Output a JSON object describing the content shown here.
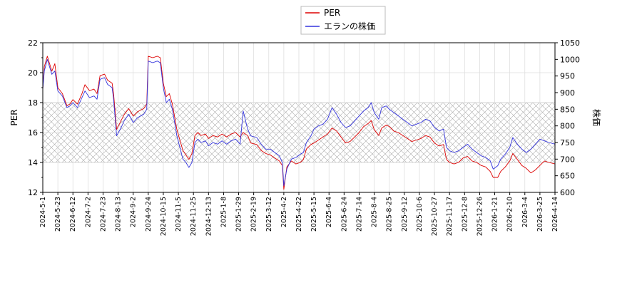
{
  "chart_data": {
    "type": "line",
    "ylabel_left": "PER",
    "ylabel_right": "株価",
    "ylim_left": [
      12,
      22
    ],
    "yticks_left": [
      12,
      14,
      16,
      18,
      20,
      22
    ],
    "ylim_right": [
      600,
      1050
    ],
    "yticks_right": [
      600,
      650,
      700,
      750,
      800,
      850,
      900,
      950,
      1000,
      1050
    ],
    "band": {
      "from": 14,
      "to": 18,
      "pattern": "cross-hatch"
    },
    "grid": true,
    "legend_position": "top-center",
    "x_tick_labels": [
      "2024-5-1",
      "2024-5-23",
      "2024-6-12",
      "2024-7-2",
      "2024-7-23",
      "2024-8-13",
      "2024-9-2",
      "2024-9-24",
      "2024-10-15",
      "2024-11-5",
      "2024-11-25",
      "2024-12-13",
      "2025-1-8",
      "2025-1-29",
      "2025-2-19",
      "2025-3-12",
      "2025-4-2",
      "2025-4-22",
      "2025-5-15",
      "2025-6-4",
      "2025-6-24",
      "2025-7-14",
      "2025-8-4",
      "2025-8-25",
      "2025-9-12",
      "2025-10-6",
      "2025-10-27",
      "2025-11-17",
      "2025-12-8",
      "2025-12-26",
      "2026-1-21",
      "2026-2-10",
      "2026-3-4",
      "2026-3-25",
      "2026-4-14"
    ],
    "series": [
      {
        "name": "PER",
        "axis": "left",
        "color": "#dd0000",
        "points": [
          [
            0,
            18.9
          ],
          [
            0.1,
            20.4
          ],
          [
            0.3,
            21.1
          ],
          [
            0.6,
            20.1
          ],
          [
            0.8,
            20.6
          ],
          [
            1.0,
            19.0
          ],
          [
            1.3,
            18.6
          ],
          [
            1.6,
            17.8
          ],
          [
            1.8,
            17.9
          ],
          [
            2.0,
            18.2
          ],
          [
            2.3,
            17.9
          ],
          [
            2.6,
            18.6
          ],
          [
            2.8,
            19.2
          ],
          [
            3.1,
            18.8
          ],
          [
            3.4,
            18.9
          ],
          [
            3.6,
            18.6
          ],
          [
            3.8,
            19.8
          ],
          [
            4.1,
            19.9
          ],
          [
            4.3,
            19.5
          ],
          [
            4.6,
            19.3
          ],
          [
            4.7,
            18.6
          ],
          [
            4.9,
            16.2
          ],
          [
            5.2,
            16.8
          ],
          [
            5.4,
            17.2
          ],
          [
            5.7,
            17.6
          ],
          [
            6.0,
            17.1
          ],
          [
            6.3,
            17.4
          ],
          [
            6.5,
            17.5
          ],
          [
            6.7,
            17.6
          ],
          [
            6.9,
            17.9
          ],
          [
            7.0,
            21.1
          ],
          [
            7.3,
            21.0
          ],
          [
            7.6,
            21.1
          ],
          [
            7.8,
            21.0
          ],
          [
            8.0,
            19.3
          ],
          [
            8.2,
            18.4
          ],
          [
            8.4,
            18.6
          ],
          [
            8.6,
            17.9
          ],
          [
            8.9,
            16.2
          ],
          [
            9.1,
            15.5
          ],
          [
            9.3,
            14.8
          ],
          [
            9.5,
            14.5
          ],
          [
            9.7,
            14.2
          ],
          [
            9.9,
            14.6
          ],
          [
            10.1,
            15.8
          ],
          [
            10.3,
            16.0
          ],
          [
            10.5,
            15.8
          ],
          [
            10.8,
            15.9
          ],
          [
            11.0,
            15.6
          ],
          [
            11.3,
            15.8
          ],
          [
            11.6,
            15.7
          ],
          [
            11.9,
            15.9
          ],
          [
            12.2,
            15.7
          ],
          [
            12.5,
            15.9
          ],
          [
            12.8,
            16.0
          ],
          [
            13.1,
            15.7
          ],
          [
            13.3,
            16.0
          ],
          [
            13.6,
            15.8
          ],
          [
            13.8,
            15.3
          ],
          [
            14.2,
            15.2
          ],
          [
            14.5,
            14.8
          ],
          [
            14.8,
            14.6
          ],
          [
            15.1,
            14.5
          ],
          [
            15.4,
            14.3
          ],
          [
            15.7,
            14.1
          ],
          [
            15.9,
            13.8
          ],
          [
            16.0,
            12.2
          ],
          [
            16.2,
            13.7
          ],
          [
            16.5,
            14.1
          ],
          [
            16.8,
            13.9
          ],
          [
            17.1,
            14.0
          ],
          [
            17.3,
            14.2
          ],
          [
            17.5,
            14.9
          ],
          [
            17.8,
            15.2
          ],
          [
            18.0,
            15.3
          ],
          [
            18.3,
            15.5
          ],
          [
            18.6,
            15.7
          ],
          [
            18.9,
            15.9
          ],
          [
            19.2,
            16.3
          ],
          [
            19.5,
            16.1
          ],
          [
            19.8,
            15.7
          ],
          [
            20.1,
            15.3
          ],
          [
            20.4,
            15.4
          ],
          [
            20.7,
            15.7
          ],
          [
            21.0,
            16.0
          ],
          [
            21.3,
            16.4
          ],
          [
            21.6,
            16.6
          ],
          [
            21.8,
            16.8
          ],
          [
            22.0,
            16.2
          ],
          [
            22.3,
            15.8
          ],
          [
            22.5,
            16.3
          ],
          [
            22.8,
            16.5
          ],
          [
            23.0,
            16.4
          ],
          [
            23.3,
            16.1
          ],
          [
            23.6,
            16.0
          ],
          [
            23.9,
            15.8
          ],
          [
            24.2,
            15.6
          ],
          [
            24.5,
            15.4
          ],
          [
            24.8,
            15.5
          ],
          [
            25.1,
            15.6
          ],
          [
            25.4,
            15.8
          ],
          [
            25.7,
            15.7
          ],
          [
            26.0,
            15.3
          ],
          [
            26.3,
            15.1
          ],
          [
            26.6,
            15.2
          ],
          [
            26.8,
            14.2
          ],
          [
            27.0,
            14.0
          ],
          [
            27.3,
            13.9
          ],
          [
            27.6,
            14.0
          ],
          [
            27.9,
            14.3
          ],
          [
            28.2,
            14.4
          ],
          [
            28.5,
            14.1
          ],
          [
            28.8,
            14.0
          ],
          [
            29.1,
            13.8
          ],
          [
            29.4,
            13.7
          ],
          [
            29.7,
            13.4
          ],
          [
            29.9,
            13.0
          ],
          [
            30.2,
            13.0
          ],
          [
            30.4,
            13.4
          ],
          [
            30.7,
            13.7
          ],
          [
            31.0,
            14.1
          ],
          [
            31.2,
            14.6
          ],
          [
            31.5,
            14.2
          ],
          [
            31.8,
            13.8
          ],
          [
            32.1,
            13.6
          ],
          [
            32.4,
            13.3
          ],
          [
            32.7,
            13.5
          ],
          [
            33.0,
            13.8
          ],
          [
            33.3,
            14.1
          ],
          [
            33.6,
            14.0
          ],
          [
            34.0,
            13.9
          ],
          [
            34.3,
            13.8
          ],
          [
            34.6,
            13.7
          ]
        ]
      },
      {
        "name": "エランの株価",
        "axis": "right",
        "color": "#3333dd",
        "points": [
          [
            0,
            910
          ],
          [
            0.1,
            965
          ],
          [
            0.3,
            1000
          ],
          [
            0.6,
            955
          ],
          [
            0.8,
            965
          ],
          [
            1.0,
            905
          ],
          [
            1.3,
            890
          ],
          [
            1.6,
            855
          ],
          [
            1.8,
            860
          ],
          [
            2.0,
            870
          ],
          [
            2.3,
            855
          ],
          [
            2.6,
            885
          ],
          [
            2.8,
            905
          ],
          [
            3.1,
            885
          ],
          [
            3.4,
            890
          ],
          [
            3.6,
            880
          ],
          [
            3.8,
            940
          ],
          [
            4.1,
            945
          ],
          [
            4.3,
            925
          ],
          [
            4.6,
            915
          ],
          [
            4.7,
            880
          ],
          [
            4.9,
            770
          ],
          [
            5.2,
            795
          ],
          [
            5.4,
            815
          ],
          [
            5.7,
            835
          ],
          [
            6.0,
            810
          ],
          [
            6.3,
            825
          ],
          [
            6.5,
            830
          ],
          [
            6.7,
            835
          ],
          [
            6.9,
            850
          ],
          [
            7.0,
            995
          ],
          [
            7.3,
            990
          ],
          [
            7.6,
            995
          ],
          [
            7.8,
            990
          ],
          [
            8.0,
            915
          ],
          [
            8.2,
            870
          ],
          [
            8.4,
            880
          ],
          [
            8.6,
            850
          ],
          [
            8.9,
            770
          ],
          [
            9.1,
            735
          ],
          [
            9.3,
            700
          ],
          [
            9.5,
            690
          ],
          [
            9.7,
            675
          ],
          [
            9.9,
            690
          ],
          [
            10.1,
            750
          ],
          [
            10.3,
            760
          ],
          [
            10.5,
            750
          ],
          [
            10.8,
            755
          ],
          [
            11.0,
            740
          ],
          [
            11.3,
            750
          ],
          [
            11.6,
            745
          ],
          [
            11.9,
            755
          ],
          [
            12.2,
            745
          ],
          [
            12.5,
            755
          ],
          [
            12.8,
            760
          ],
          [
            13.1,
            745
          ],
          [
            13.3,
            845
          ],
          [
            13.6,
            790
          ],
          [
            13.8,
            770
          ],
          [
            14.2,
            765
          ],
          [
            14.5,
            745
          ],
          [
            14.8,
            730
          ],
          [
            15.1,
            730
          ],
          [
            15.4,
            720
          ],
          [
            15.7,
            710
          ],
          [
            15.9,
            690
          ],
          [
            16.0,
            620
          ],
          [
            16.2,
            670
          ],
          [
            16.5,
            700
          ],
          [
            16.8,
            705
          ],
          [
            17.1,
            715
          ],
          [
            17.3,
            720
          ],
          [
            17.5,
            750
          ],
          [
            17.8,
            770
          ],
          [
            18.0,
            790
          ],
          [
            18.3,
            800
          ],
          [
            18.6,
            805
          ],
          [
            18.9,
            820
          ],
          [
            19.2,
            855
          ],
          [
            19.5,
            835
          ],
          [
            19.8,
            810
          ],
          [
            20.1,
            795
          ],
          [
            20.4,
            800
          ],
          [
            20.7,
            815
          ],
          [
            21.0,
            830
          ],
          [
            21.3,
            845
          ],
          [
            21.6,
            855
          ],
          [
            21.8,
            870
          ],
          [
            22.0,
            840
          ],
          [
            22.3,
            820
          ],
          [
            22.5,
            855
          ],
          [
            22.8,
            860
          ],
          [
            23.0,
            850
          ],
          [
            23.3,
            840
          ],
          [
            23.6,
            830
          ],
          [
            23.9,
            820
          ],
          [
            24.2,
            810
          ],
          [
            24.5,
            800
          ],
          [
            24.8,
            805
          ],
          [
            25.1,
            810
          ],
          [
            25.4,
            820
          ],
          [
            25.7,
            815
          ],
          [
            26.0,
            795
          ],
          [
            26.3,
            785
          ],
          [
            26.6,
            790
          ],
          [
            26.8,
            735
          ],
          [
            27.0,
            725
          ],
          [
            27.3,
            720
          ],
          [
            27.6,
            725
          ],
          [
            27.9,
            735
          ],
          [
            28.2,
            745
          ],
          [
            28.5,
            730
          ],
          [
            28.8,
            720
          ],
          [
            29.1,
            710
          ],
          [
            29.4,
            705
          ],
          [
            29.7,
            695
          ],
          [
            29.9,
            670
          ],
          [
            30.2,
            680
          ],
          [
            30.4,
            700
          ],
          [
            30.7,
            715
          ],
          [
            31.0,
            735
          ],
          [
            31.2,
            765
          ],
          [
            31.5,
            745
          ],
          [
            31.8,
            730
          ],
          [
            32.1,
            720
          ],
          [
            32.4,
            730
          ],
          [
            32.7,
            745
          ],
          [
            33.0,
            760
          ],
          [
            33.3,
            755
          ],
          [
            33.6,
            750
          ],
          [
            34.0,
            745
          ],
          [
            34.3,
            740
          ],
          [
            34.6,
            735
          ]
        ]
      }
    ]
  }
}
